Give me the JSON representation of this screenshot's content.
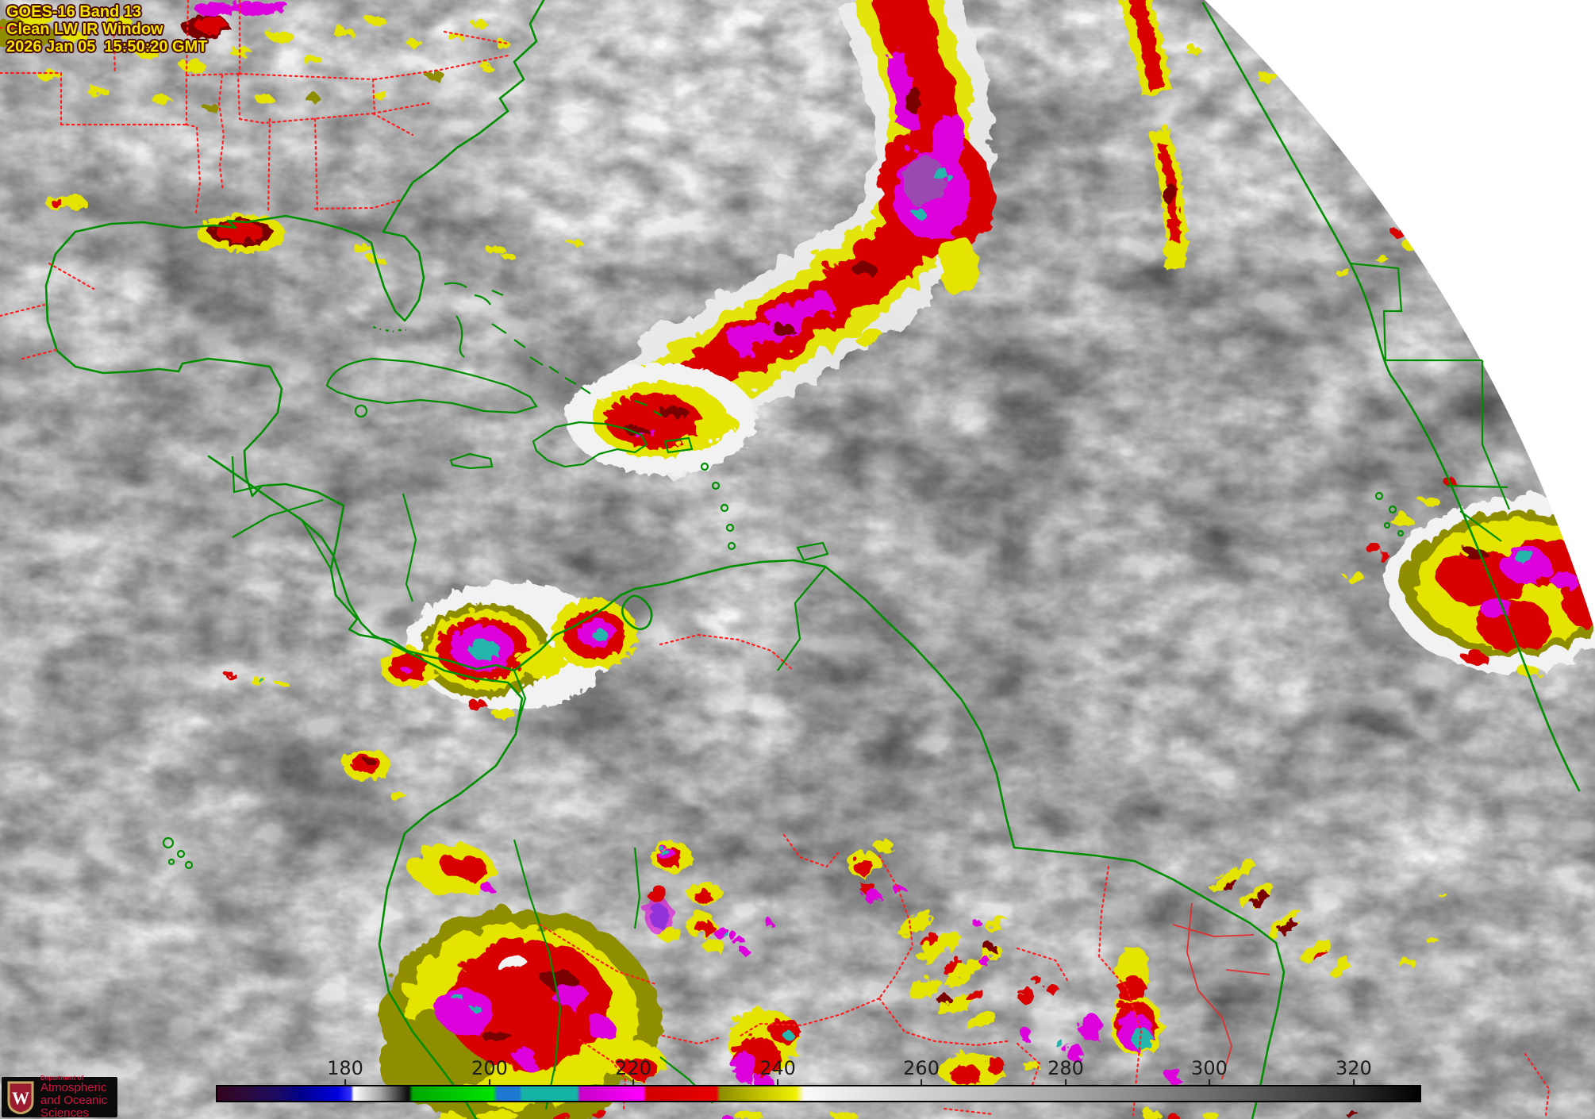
{
  "annotation": {
    "line1": "GOES-16 Band 13",
    "line2": "Clean LW IR Window",
    "line3": "2026 Jan 05  15:50:20 GMT",
    "text_color": "#f2e600"
  },
  "colorbar": {
    "tick_labels": [
      "180",
      "200",
      "220",
      "240",
      "260",
      "280",
      "300",
      "320"
    ],
    "tick_positions_pct": [
      10.73,
      22.71,
      34.63,
      46.61,
      58.53,
      70.51,
      82.42,
      94.4
    ],
    "tick_color": "#1c1c1c",
    "border_color": "#000000",
    "gradient_stops": [
      [
        0,
        "#33041e"
      ],
      [
        2.5,
        "#2a0a3c"
      ],
      [
        5.1,
        "#1a0a66"
      ],
      [
        7,
        "#00008b"
      ],
      [
        10,
        "#0000e0"
      ],
      [
        11.1,
        "#3333ff"
      ],
      [
        11.35,
        "#ffffff"
      ],
      [
        13.5,
        "#a8a8a8"
      ],
      [
        15.9,
        "#0a0a0a"
      ],
      [
        16.25,
        "#00a800"
      ],
      [
        22.9,
        "#00e400"
      ],
      [
        23.3,
        "#1e78d2"
      ],
      [
        25.1,
        "#1e78d2"
      ],
      [
        25.35,
        "#14b3a6"
      ],
      [
        29.9,
        "#14b3a6"
      ],
      [
        30.2,
        "#c800c8"
      ],
      [
        35.4,
        "#ff00ff"
      ],
      [
        35.7,
        "#d20000"
      ],
      [
        41.5,
        "#e60000"
      ],
      [
        41.8,
        "#8c8c00"
      ],
      [
        45.5,
        "#c8c800"
      ],
      [
        48.1,
        "#f0f000"
      ],
      [
        48.8,
        "#fafafa"
      ],
      [
        58.5,
        "#d2d2d2"
      ],
      [
        70.5,
        "#a8a8a8"
      ],
      [
        82.4,
        "#6e6e6e"
      ],
      [
        94.4,
        "#2d2d2d"
      ],
      [
        100,
        "#000000"
      ]
    ]
  },
  "logo": {
    "dept": "Department of",
    "name_line1": "Atmospheric",
    "name_line2": "and Oceanic Sciences",
    "crest_letter": "W",
    "bg_color": "#0b0b0b",
    "text_color": "#d01540",
    "crest_red": "#9b1c2e",
    "crest_gold": "#c6a664"
  },
  "overlay_colors": {
    "coastline": "#008f00",
    "political_border": "#ff1e1e",
    "space_background": "#ffffff"
  },
  "enhancement_palette": {
    "yellow": "#e4e400",
    "olive": "#8f8d00",
    "red": "#d80000",
    "dark_red": "#7a0000",
    "magenta": "#dd00dd",
    "cyan": "#27b5ad",
    "blue": "#1f7fd8"
  }
}
